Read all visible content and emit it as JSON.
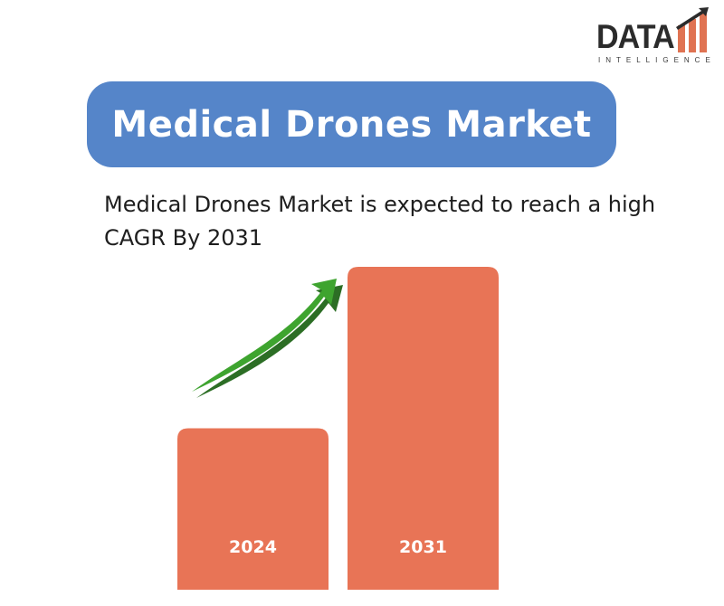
{
  "logo": {
    "word": "DATA",
    "sub": "INTELLIGENCE",
    "colors": {
      "text": "#2b2b2b",
      "bars": "#e07352"
    }
  },
  "title": "Medical Drones Market",
  "subtitle": "Medical Drones Market is expected to reach a high CAGR By 2031",
  "colors": {
    "title_bg": "#5585c9",
    "bar": "#e87456",
    "arrow": "#3ea42f"
  },
  "chart_data": {
    "type": "bar",
    "categories": [
      "2024",
      "2031"
    ],
    "values": [
      1,
      2
    ],
    "trend": "up"
  }
}
